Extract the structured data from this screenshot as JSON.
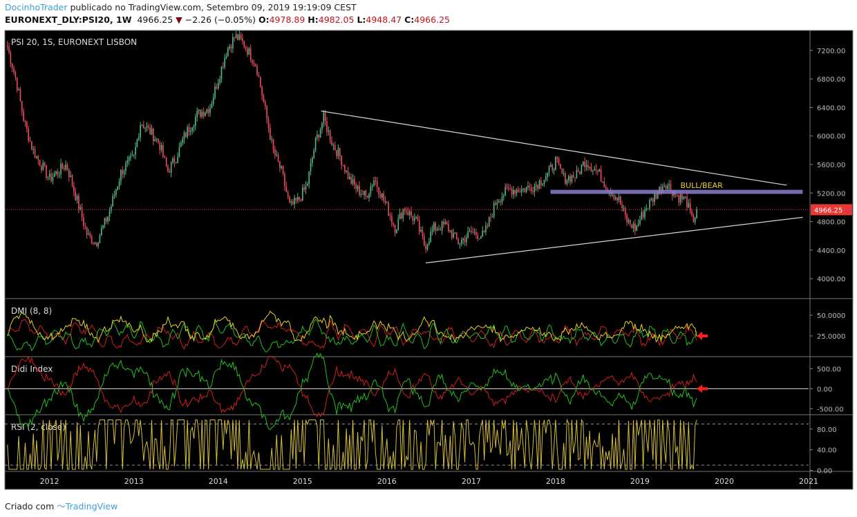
{
  "header": {
    "author": "DocinhoTrader",
    "published": "publicado no TradingView.com, Setembro 09, 2019 19:19:09 CEST",
    "symbol": "EURONEXT_DLY:PSI20, 1W",
    "last": "4966.25",
    "change": "−2.26 (−0.05%)",
    "open_label": "O:",
    "open": "4978.89",
    "high_label": "H:",
    "high": "4982.05",
    "low_label": "L:",
    "low": "4948.47",
    "close_label": "C:",
    "close": "4966.25"
  },
  "footer": {
    "created_with": "Criado com",
    "brand": "TradingView"
  },
  "colors": {
    "up": "#53b987",
    "down": "#eb4d5c",
    "background": "#000000",
    "trendline": "#d8d8d8",
    "zone": "#8a7bd0",
    "dmi_plus": "#22c322",
    "dmi_minus": "#d32020",
    "adx": "#e8d32a",
    "rsi": "#d8c03a",
    "last_price": "#e53935"
  },
  "chart_data": [
    {
      "type": "candlestick",
      "title": "PSI 20, 1S, EURONEXT LISBON",
      "x_ticks": [
        "2012",
        "2013",
        "2014",
        "2015",
        "2016",
        "2017",
        "2018",
        "2019",
        "2020",
        "2021"
      ],
      "y_ticks": [
        "4000.00",
        "4400.00",
        "4800.00",
        "5200.00",
        "5600.00",
        "6000.00",
        "6400.00",
        "6800.00",
        "7200.00"
      ],
      "ylim": [
        3720,
        7480
      ],
      "xlim": [
        2011.47,
        2021.0
      ],
      "last_price_label": "4966.25",
      "approx_close_path": [
        [
          2011.5,
          7250
        ],
        [
          2011.6,
          6800
        ],
        [
          2011.7,
          6200
        ],
        [
          2011.8,
          5800
        ],
        [
          2011.9,
          5600
        ],
        [
          2012.0,
          5400
        ],
        [
          2012.2,
          5600
        ],
        [
          2012.3,
          5200
        ],
        [
          2012.45,
          4600
        ],
        [
          2012.55,
          4500
        ],
        [
          2012.7,
          4900
        ],
        [
          2012.85,
          5500
        ],
        [
          2013.0,
          5700
        ],
        [
          2013.08,
          6200
        ],
        [
          2013.2,
          6050
        ],
        [
          2013.3,
          5900
        ],
        [
          2013.4,
          5500
        ],
        [
          2013.5,
          5700
        ],
        [
          2013.6,
          6000
        ],
        [
          2013.75,
          6300
        ],
        [
          2013.9,
          6400
        ],
        [
          2014.0,
          6800
        ],
        [
          2014.1,
          7200
        ],
        [
          2014.2,
          7400
        ],
        [
          2014.3,
          7300
        ],
        [
          2014.45,
          7000
        ],
        [
          2014.55,
          6400
        ],
        [
          2014.65,
          5800
        ],
        [
          2014.75,
          5500
        ],
        [
          2014.85,
          5000
        ],
        [
          2014.95,
          5100
        ],
        [
          2015.05,
          5300
        ],
        [
          2015.15,
          5900
        ],
        [
          2015.25,
          6250
        ],
        [
          2015.35,
          5900
        ],
        [
          2015.45,
          5700
        ],
        [
          2015.55,
          5400
        ],
        [
          2015.65,
          5250
        ],
        [
          2015.75,
          5150
        ],
        [
          2015.85,
          5400
        ],
        [
          2016.0,
          5000
        ],
        [
          2016.1,
          4700
        ],
        [
          2016.2,
          5000
        ],
        [
          2016.35,
          4800
        ],
        [
          2016.45,
          4450
        ],
        [
          2016.55,
          4700
        ],
        [
          2016.7,
          4750
        ],
        [
          2016.85,
          4500
        ],
        [
          2017.0,
          4650
        ],
        [
          2017.15,
          4600
        ],
        [
          2017.3,
          5100
        ],
        [
          2017.45,
          5250
        ],
        [
          2017.6,
          5250
        ],
        [
          2017.75,
          5300
        ],
        [
          2017.9,
          5450
        ],
        [
          2018.0,
          5650
        ],
        [
          2018.1,
          5400
        ],
        [
          2018.25,
          5450
        ],
        [
          2018.35,
          5650
        ],
        [
          2018.5,
          5500
        ],
        [
          2018.6,
          5300
        ],
        [
          2018.75,
          5100
        ],
        [
          2018.85,
          4800
        ],
        [
          2018.95,
          4700
        ],
        [
          2019.05,
          4950
        ],
        [
          2019.2,
          5200
        ],
        [
          2019.3,
          5350
        ],
        [
          2019.45,
          5150
        ],
        [
          2019.55,
          5100
        ],
        [
          2019.62,
          4800
        ],
        [
          2019.69,
          4966.25
        ]
      ],
      "trendlines": [
        {
          "from": [
            2015.22,
            6350
          ],
          "to": [
            2020.74,
            5310
          ]
        },
        {
          "from": [
            2016.46,
            4220
          ],
          "to": [
            2020.93,
            4860
          ]
        }
      ],
      "zone": {
        "label": "BULL/BEAR",
        "from": 2017.94,
        "to": 2020.93,
        "low": 5188,
        "high": 5245
      }
    },
    {
      "type": "line",
      "title": "DMI (8, 8)",
      "y_ticks": [
        "25.0000",
        "50.0000"
      ],
      "ylim": [
        0,
        70
      ]
    },
    {
      "type": "line",
      "title": "Didi Index",
      "y_ticks": [
        "-500.00",
        "0.00",
        "500.00"
      ],
      "ylim": [
        -650,
        800
      ]
    },
    {
      "type": "line",
      "title": "RSI (2, close)",
      "y_ticks": [
        "0.00",
        "40.00",
        "80.00"
      ],
      "ylim": [
        -2,
        108
      ],
      "bands": [
        90,
        10
      ]
    }
  ]
}
